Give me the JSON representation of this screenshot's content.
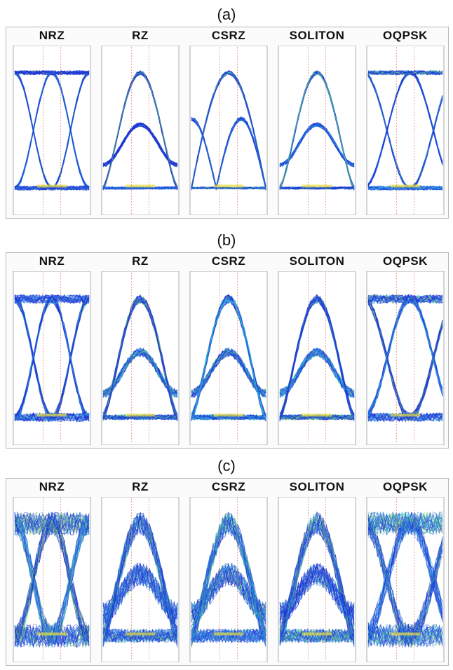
{
  "figure": {
    "panels": [
      {
        "label": "(a)",
        "eyes": [
          {
            "title": "NRZ",
            "format": "nrz",
            "quality": "clean"
          },
          {
            "title": "RZ",
            "format": "rz",
            "quality": "clean"
          },
          {
            "title": "CSRZ",
            "format": "csrz",
            "quality": "clean"
          },
          {
            "title": "SOLITON",
            "format": "rz",
            "quality": "clean"
          },
          {
            "title": "OQPSK",
            "format": "oqpsk",
            "quality": "clean"
          }
        ]
      },
      {
        "label": "(b)",
        "eyes": [
          {
            "title": "NRZ",
            "format": "nrz",
            "quality": "moderate"
          },
          {
            "title": "RZ",
            "format": "rz",
            "quality": "moderate"
          },
          {
            "title": "CSRZ",
            "format": "rz",
            "quality": "moderate"
          },
          {
            "title": "SOLITON",
            "format": "rz",
            "quality": "moderate"
          },
          {
            "title": "OQPSK",
            "format": "oqpsk",
            "quality": "moderate"
          }
        ]
      },
      {
        "label": "(c)",
        "eyes": [
          {
            "title": "NRZ",
            "format": "nrz",
            "quality": "degraded"
          },
          {
            "title": "RZ",
            "format": "rz",
            "quality": "degraded"
          },
          {
            "title": "CSRZ",
            "format": "rz",
            "quality": "degraded"
          },
          {
            "title": "SOLITON",
            "format": "rz",
            "quality": "degraded"
          },
          {
            "title": "OQPSK",
            "format": "oqpsk",
            "quality": "degraded"
          }
        ]
      }
    ],
    "colors": {
      "trace_dark": "#1f2fd6",
      "trace_mid": "#2a7de0",
      "trace_cyan": "#2fc4d8",
      "trace_green": "#7fe04a",
      "trace_yellow": "#e8e040",
      "marker": "#e06a4a"
    }
  }
}
